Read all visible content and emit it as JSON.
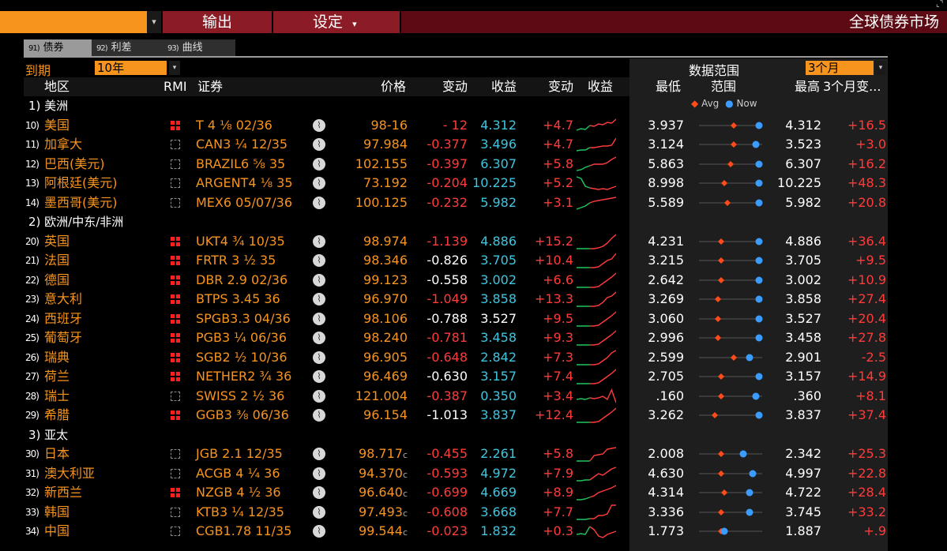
{
  "header": {
    "menu_output": "输出",
    "menu_settings": "设定",
    "settings_arrow": "▾",
    "app_title": "全球债券市场",
    "cmd_arrow": "▾",
    "corner": "⌞⌝"
  },
  "tabs": [
    {
      "num": "91)",
      "label": "债券"
    },
    {
      "num": "92)",
      "label": "利差"
    },
    {
      "num": "93)",
      "label": "曲线"
    }
  ],
  "controls": {
    "maturity_label": "到期",
    "maturity_value": "10年",
    "range_label": "数据范围",
    "range_value": "3个月",
    "arrow": "▾"
  },
  "columns": {
    "region": "地区",
    "rmi": "RMI",
    "security": "证券",
    "price": "价格",
    "change": "变动",
    "yield": "收益",
    "ychange": "变动",
    "ychart": "收益",
    "low": "最低",
    "range": "范围",
    "high": "最高",
    "chg3m": "3个月变..."
  },
  "legend": {
    "avg": "Avg",
    "now": "Now",
    "avg_marker": "◆",
    "now_marker": "●"
  },
  "colors": {
    "orange": "#f7941d",
    "red": "#ff3b3b",
    "cyan": "#3ec6e0",
    "green": "#22c55e",
    "blue": "#3b9cff",
    "avg": "#ff4a1a"
  },
  "groups": [
    {
      "label": "1) 美洲",
      "rows": [
        {
          "num": "10)",
          "region": "美国",
          "rmi": "full",
          "sec": "T 4 ⅛ 02/36",
          "price": "98-16",
          "pchg": "- 12",
          "pchg_red": true,
          "yld": "4.312",
          "ycyan": true,
          "ychg": "+4.7",
          "spark": [
            0.2,
            0.3,
            0.25,
            0.5,
            0.45,
            0.6,
            0.55,
            0.7,
            0.65,
            0.9
          ],
          "low": "3.937",
          "avgp": 0.55,
          "nowp": 0.95,
          "high": "4.312",
          "chg3m": "+16.5"
        },
        {
          "num": "11)",
          "region": "加拿大",
          "rmi": "empty",
          "sec": "CAN3 ¼ 12/35",
          "price": "97.984",
          "pchg": "-0.377",
          "pchg_red": true,
          "yld": "3.496",
          "ycyan": true,
          "ychg": "+4.7",
          "spark": [
            0.1,
            0.15,
            0.15,
            0.3,
            0.3,
            0.35,
            0.4,
            0.4,
            0.45,
            0.9
          ],
          "low": "3.124",
          "avgp": 0.55,
          "nowp": 0.9,
          "high": "3.523",
          "chg3m": "+3.0"
        },
        {
          "num": "12)",
          "region": "巴西(美元)",
          "rmi": "empty",
          "sec": "BRAZIL6 ⅝ 35",
          "price": "102.155",
          "pchg": "-0.397",
          "pchg_red": true,
          "yld": "6.307",
          "ycyan": true,
          "ychg": "+5.8",
          "spark": [
            0.1,
            0.15,
            0.3,
            0.4,
            0.5,
            0.5,
            0.5,
            0.6,
            0.8,
            0.95
          ],
          "low": "5.863",
          "avgp": 0.5,
          "nowp": 0.95,
          "high": "6.307",
          "chg3m": "+16.2"
        },
        {
          "num": "13)",
          "region": "阿根廷(美元)",
          "rmi": "empty",
          "sec": "ARGENT4 ⅛ 35",
          "price": "73.192",
          "pchg": "-0.204",
          "pchg_red": true,
          "yld": "10.225",
          "ycyan": true,
          "ychg": "+5.2",
          "spark": [
            0.9,
            0.8,
            0.3,
            0.2,
            0.15,
            0.1,
            0.15,
            0.1,
            0.2,
            0.3
          ],
          "low": "8.998",
          "avgp": 0.4,
          "nowp": 0.95,
          "high": "10.225",
          "chg3m": "+48.3"
        },
        {
          "num": "14)",
          "region": "墨西哥(美元)",
          "rmi": "empty",
          "sec": "MEX6 05/07/36",
          "price": "100.125",
          "pchg": "-0.232",
          "pchg_red": true,
          "yld": "5.982",
          "ycyan": true,
          "ychg": "+3.1",
          "spark": [
            0.1,
            0.2,
            0.3,
            0.5,
            0.6,
            0.65,
            0.7,
            0.75,
            0.8,
            0.85
          ],
          "low": "5.589",
          "avgp": 0.45,
          "nowp": 0.95,
          "high": "5.982",
          "chg3m": "+20.8"
        }
      ]
    },
    {
      "label": "2) 欧洲/中东/非洲",
      "rows": [
        {
          "num": "20)",
          "region": "英国",
          "rmi": "full",
          "sec": "UKT4 ¾ 10/35",
          "price": "98.974",
          "pchg": "-1.139",
          "pchg_red": true,
          "yld": "4.886",
          "ycyan": true,
          "ychg": "+15.2",
          "spark": [
            0.05,
            0.05,
            0.05,
            0.05,
            0.05,
            0.1,
            0.2,
            0.4,
            0.7,
            0.95
          ],
          "low": "4.231",
          "avgp": 0.35,
          "nowp": 0.95,
          "high": "4.886",
          "chg3m": "+36.4"
        },
        {
          "num": "21)",
          "region": "法国",
          "rmi": "full",
          "sec": "FRTR 3 ½ 35",
          "price": "98.346",
          "pchg": "-0.826",
          "pchg_red": false,
          "yld": "3.705",
          "ycyan": true,
          "ychg": "+10.4",
          "spark": [
            0.05,
            0.05,
            0.05,
            0.05,
            0.05,
            0.1,
            0.3,
            0.5,
            0.6,
            0.95
          ],
          "low": "3.215",
          "avgp": 0.35,
          "nowp": 0.95,
          "high": "3.705",
          "chg3m": "+9.5"
        },
        {
          "num": "22)",
          "region": "德国",
          "rmi": "full",
          "sec": "DBR 2.9 02/36",
          "price": "99.123",
          "pchg": "-0.558",
          "pchg_red": false,
          "yld": "3.002",
          "ycyan": true,
          "ychg": "+6.6",
          "spark": [
            0.05,
            0.05,
            0.05,
            0.05,
            0.05,
            0.1,
            0.3,
            0.5,
            0.7,
            0.95
          ],
          "low": "2.642",
          "avgp": 0.35,
          "nowp": 0.95,
          "high": "3.002",
          "chg3m": "+10.9"
        },
        {
          "num": "23)",
          "region": "意大利",
          "rmi": "full",
          "sec": "BTPS 3.45 36",
          "price": "96.970",
          "pchg": "-1.049",
          "pchg_red": true,
          "yld": "3.858",
          "ycyan": true,
          "ychg": "+13.3",
          "spark": [
            0.05,
            0.05,
            0.05,
            0.05,
            0.05,
            0.1,
            0.3,
            0.6,
            0.7,
            0.95
          ],
          "low": "3.269",
          "avgp": 0.3,
          "nowp": 0.95,
          "high": "3.858",
          "chg3m": "+27.4"
        },
        {
          "num": "24)",
          "region": "西班牙",
          "rmi": "full",
          "sec": "SPGB3.3 04/36",
          "price": "98.106",
          "pchg": "-0.788",
          "pchg_red": false,
          "yld": "3.527",
          "ycyan": false,
          "ychg": "+9.5",
          "spark": [
            0.05,
            0.05,
            0.05,
            0.05,
            0.05,
            0.1,
            0.3,
            0.5,
            0.7,
            0.95
          ],
          "low": "3.060",
          "avgp": 0.3,
          "nowp": 0.95,
          "high": "3.527",
          "chg3m": "+20.4"
        },
        {
          "num": "25)",
          "region": "葡萄牙",
          "rmi": "full",
          "sec": "PGB3 ¼ 06/36",
          "price": "98.240",
          "pchg": "-0.781",
          "pchg_red": true,
          "yld": "3.458",
          "ycyan": true,
          "ychg": "+9.3",
          "spark": [
            0.05,
            0.05,
            0.05,
            0.05,
            0.05,
            0.1,
            0.3,
            0.5,
            0.7,
            0.95
          ],
          "low": "2.996",
          "avgp": 0.3,
          "nowp": 0.95,
          "high": "3.458",
          "chg3m": "+27.8"
        },
        {
          "num": "26)",
          "region": "瑞典",
          "rmi": "full",
          "sec": "SGB2 ½ 10/36",
          "price": "96.905",
          "pchg": "-0.648",
          "pchg_red": true,
          "yld": "2.842",
          "ycyan": true,
          "ychg": "+7.3",
          "spark": [
            0.05,
            0.05,
            0.05,
            0.05,
            0.05,
            0.1,
            0.3,
            0.5,
            0.8,
            0.95
          ],
          "low": "2.599",
          "avgp": 0.55,
          "nowp": 0.8,
          "high": "2.901",
          "chg3m": "-2.5"
        },
        {
          "num": "27)",
          "region": "荷兰",
          "rmi": "full",
          "sec": "NETHER2 ¾ 36",
          "price": "96.469",
          "pchg": "-0.630",
          "pchg_red": false,
          "yld": "3.157",
          "ycyan": true,
          "ychg": "+7.4",
          "spark": [
            0.05,
            0.05,
            0.05,
            0.05,
            0.05,
            0.1,
            0.3,
            0.5,
            0.7,
            0.95
          ],
          "low": "2.705",
          "avgp": 0.35,
          "nowp": 0.95,
          "high": "3.157",
          "chg3m": "+14.9"
        },
        {
          "num": "28)",
          "region": "瑞士",
          "rmi": "empty",
          "sec": "SWISS 2 ½ 36",
          "price": "121.004",
          "pchg": "-0.387",
          "pchg_red": true,
          "yld": "0.350",
          "ycyan": true,
          "ychg": "+3.4",
          "spark": [
            0.3,
            0.35,
            0.3,
            0.4,
            0.35,
            0.4,
            0.5,
            0.3,
            0.9,
            0.1
          ],
          "low": ".160",
          "avgp": 0.35,
          "nowp": 0.9,
          "high": ".360",
          "chg3m": "+8.1"
        },
        {
          "num": "29)",
          "region": "希腊",
          "rmi": "full",
          "sec": "GGB3 ⅜ 06/36",
          "price": "96.154",
          "pchg": "-1.013",
          "pchg_red": false,
          "yld": "3.837",
          "ycyan": true,
          "ychg": "+12.4",
          "spark": [
            0.05,
            0.05,
            0.05,
            0.05,
            0.05,
            0.1,
            0.3,
            0.5,
            0.7,
            0.95
          ],
          "low": "3.262",
          "avgp": 0.25,
          "nowp": 0.95,
          "high": "3.837",
          "chg3m": "+37.4"
        }
      ]
    },
    {
      "label": "3) 亚太",
      "rows": [
        {
          "num": "30)",
          "region": "日本",
          "rmi": "empty",
          "sec": "JGB 2.1 12/35",
          "price": "98.717",
          "pchg": "-0.455",
          "pchg_red": true,
          "yld": "2.261",
          "ycyan": true,
          "ychg": "+5.8",
          "spark": [
            0.05,
            0.05,
            0.05,
            0.05,
            0.4,
            0.45,
            0.5,
            0.8,
            0.85,
            0.9
          ],
          "low": "2.008",
          "avgp": 0.35,
          "nowp": 0.7,
          "high": "2.342",
          "chg3m": "+25.3"
        },
        {
          "num": "31)",
          "region": "澳大利亚",
          "rmi": "empty",
          "sec": "ACGB 4 ¼ 36",
          "price": "94.370",
          "pchg": "-0.593",
          "pchg_red": true,
          "yld": "4.972",
          "ycyan": true,
          "ychg": "+7.9",
          "spark": [
            0.05,
            0.05,
            0.1,
            0.1,
            0.3,
            0.5,
            0.4,
            0.6,
            0.8,
            0.9
          ],
          "low": "4.630",
          "avgp": 0.35,
          "nowp": 0.85,
          "high": "4.997",
          "chg3m": "+22.8"
        },
        {
          "num": "32)",
          "region": "新西兰",
          "rmi": "full",
          "sec": "NZGB 4 ½ 36",
          "price": "96.640",
          "pchg": "-0.699",
          "pchg_red": true,
          "yld": "4.669",
          "ycyan": true,
          "ychg": "+8.9",
          "spark": [
            0.05,
            0.05,
            0.1,
            0.2,
            0.3,
            0.5,
            0.6,
            0.7,
            0.8,
            0.95
          ],
          "low": "4.314",
          "avgp": 0.4,
          "nowp": 0.8,
          "high": "4.722",
          "chg3m": "+28.4"
        },
        {
          "num": "33)",
          "region": "韩国",
          "rmi": "empty",
          "sec": "KTB3 ¼ 12/35",
          "price": "97.493",
          "pchg": "-0.608",
          "pchg_red": true,
          "yld": "3.668",
          "ycyan": true,
          "ychg": "+7.7",
          "spark": [
            0.05,
            0.05,
            0.05,
            0.1,
            0.1,
            0.3,
            0.3,
            0.4,
            0.95,
            0.95
          ],
          "low": "3.336",
          "avgp": 0.35,
          "nowp": 0.8,
          "high": "3.745",
          "chg3m": "+33.2"
        },
        {
          "num": "34)",
          "region": "中国",
          "rmi": "empty",
          "sec": "CGB1.78 11/35",
          "price": "99.544",
          "pchg": "-0.023",
          "pchg_red": true,
          "yld": "1.832",
          "ycyan": true,
          "ychg": "+0.3",
          "spark": [
            0.3,
            0.35,
            0.3,
            0.8,
            0.6,
            0.2,
            0.1,
            0.3,
            0.4,
            0.5
          ],
          "low": "1.773",
          "avgp": 0.35,
          "nowp": 0.4,
          "high": "1.887",
          "chg3m": "+.9"
        }
      ]
    }
  ],
  "price_suffix": {
    "30)": "c",
    "31)": "c",
    "32)": "c",
    "33)": "c",
    "34)": "c"
  }
}
